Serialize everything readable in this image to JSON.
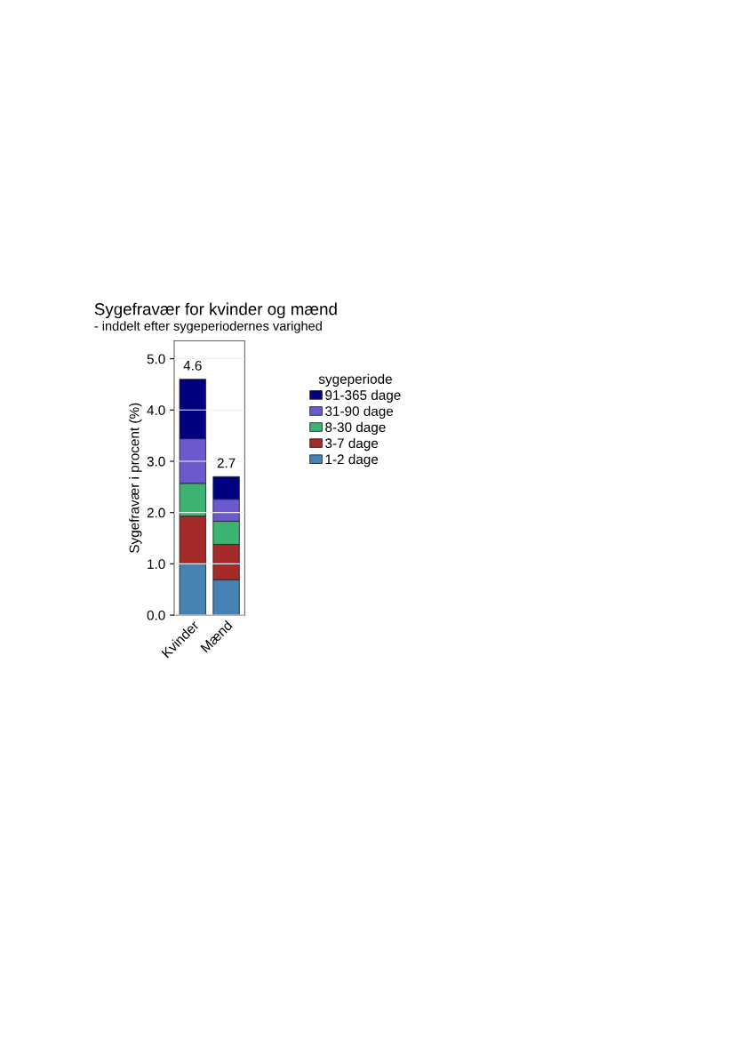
{
  "chart_data": {
    "type": "bar",
    "title": "Sygefravær for kvinder og mænd",
    "subtitle": "- inddelt efter sygeperiodernes varighed",
    "ylabel": "Sygefravær i procent (%)",
    "legend_title": "sygeperiode",
    "categories": [
      "Kvinder",
      "Mænd"
    ],
    "stacked": true,
    "series": [
      {
        "name": "1-2 dage",
        "color": "#4682b4",
        "values": [
          1.0,
          0.69
        ]
      },
      {
        "name": "3-7 dage",
        "color": "#a52a2a",
        "values": [
          0.93,
          0.69
        ]
      },
      {
        "name": "8-30 dage",
        "color": "#3cb371",
        "values": [
          0.64,
          0.45
        ]
      },
      {
        "name": "31-90 dage",
        "color": "#6a5acd",
        "values": [
          0.87,
          0.43
        ]
      },
      {
        "name": "91-365 dage",
        "color": "#000080",
        "values": [
          1.16,
          0.44
        ]
      }
    ],
    "totals": [
      "4.6",
      "2.7"
    ],
    "ylim": [
      0,
      5.35
    ],
    "yticks": [
      {
        "value": 0,
        "label": "0.0"
      },
      {
        "value": 1,
        "label": "1.0"
      },
      {
        "value": 2,
        "label": "2.0"
      },
      {
        "value": 3,
        "label": "3.0"
      },
      {
        "value": 4,
        "label": "4.0"
      },
      {
        "value": 5,
        "label": "5.0"
      }
    ],
    "grid": "y",
    "legend": "right"
  }
}
